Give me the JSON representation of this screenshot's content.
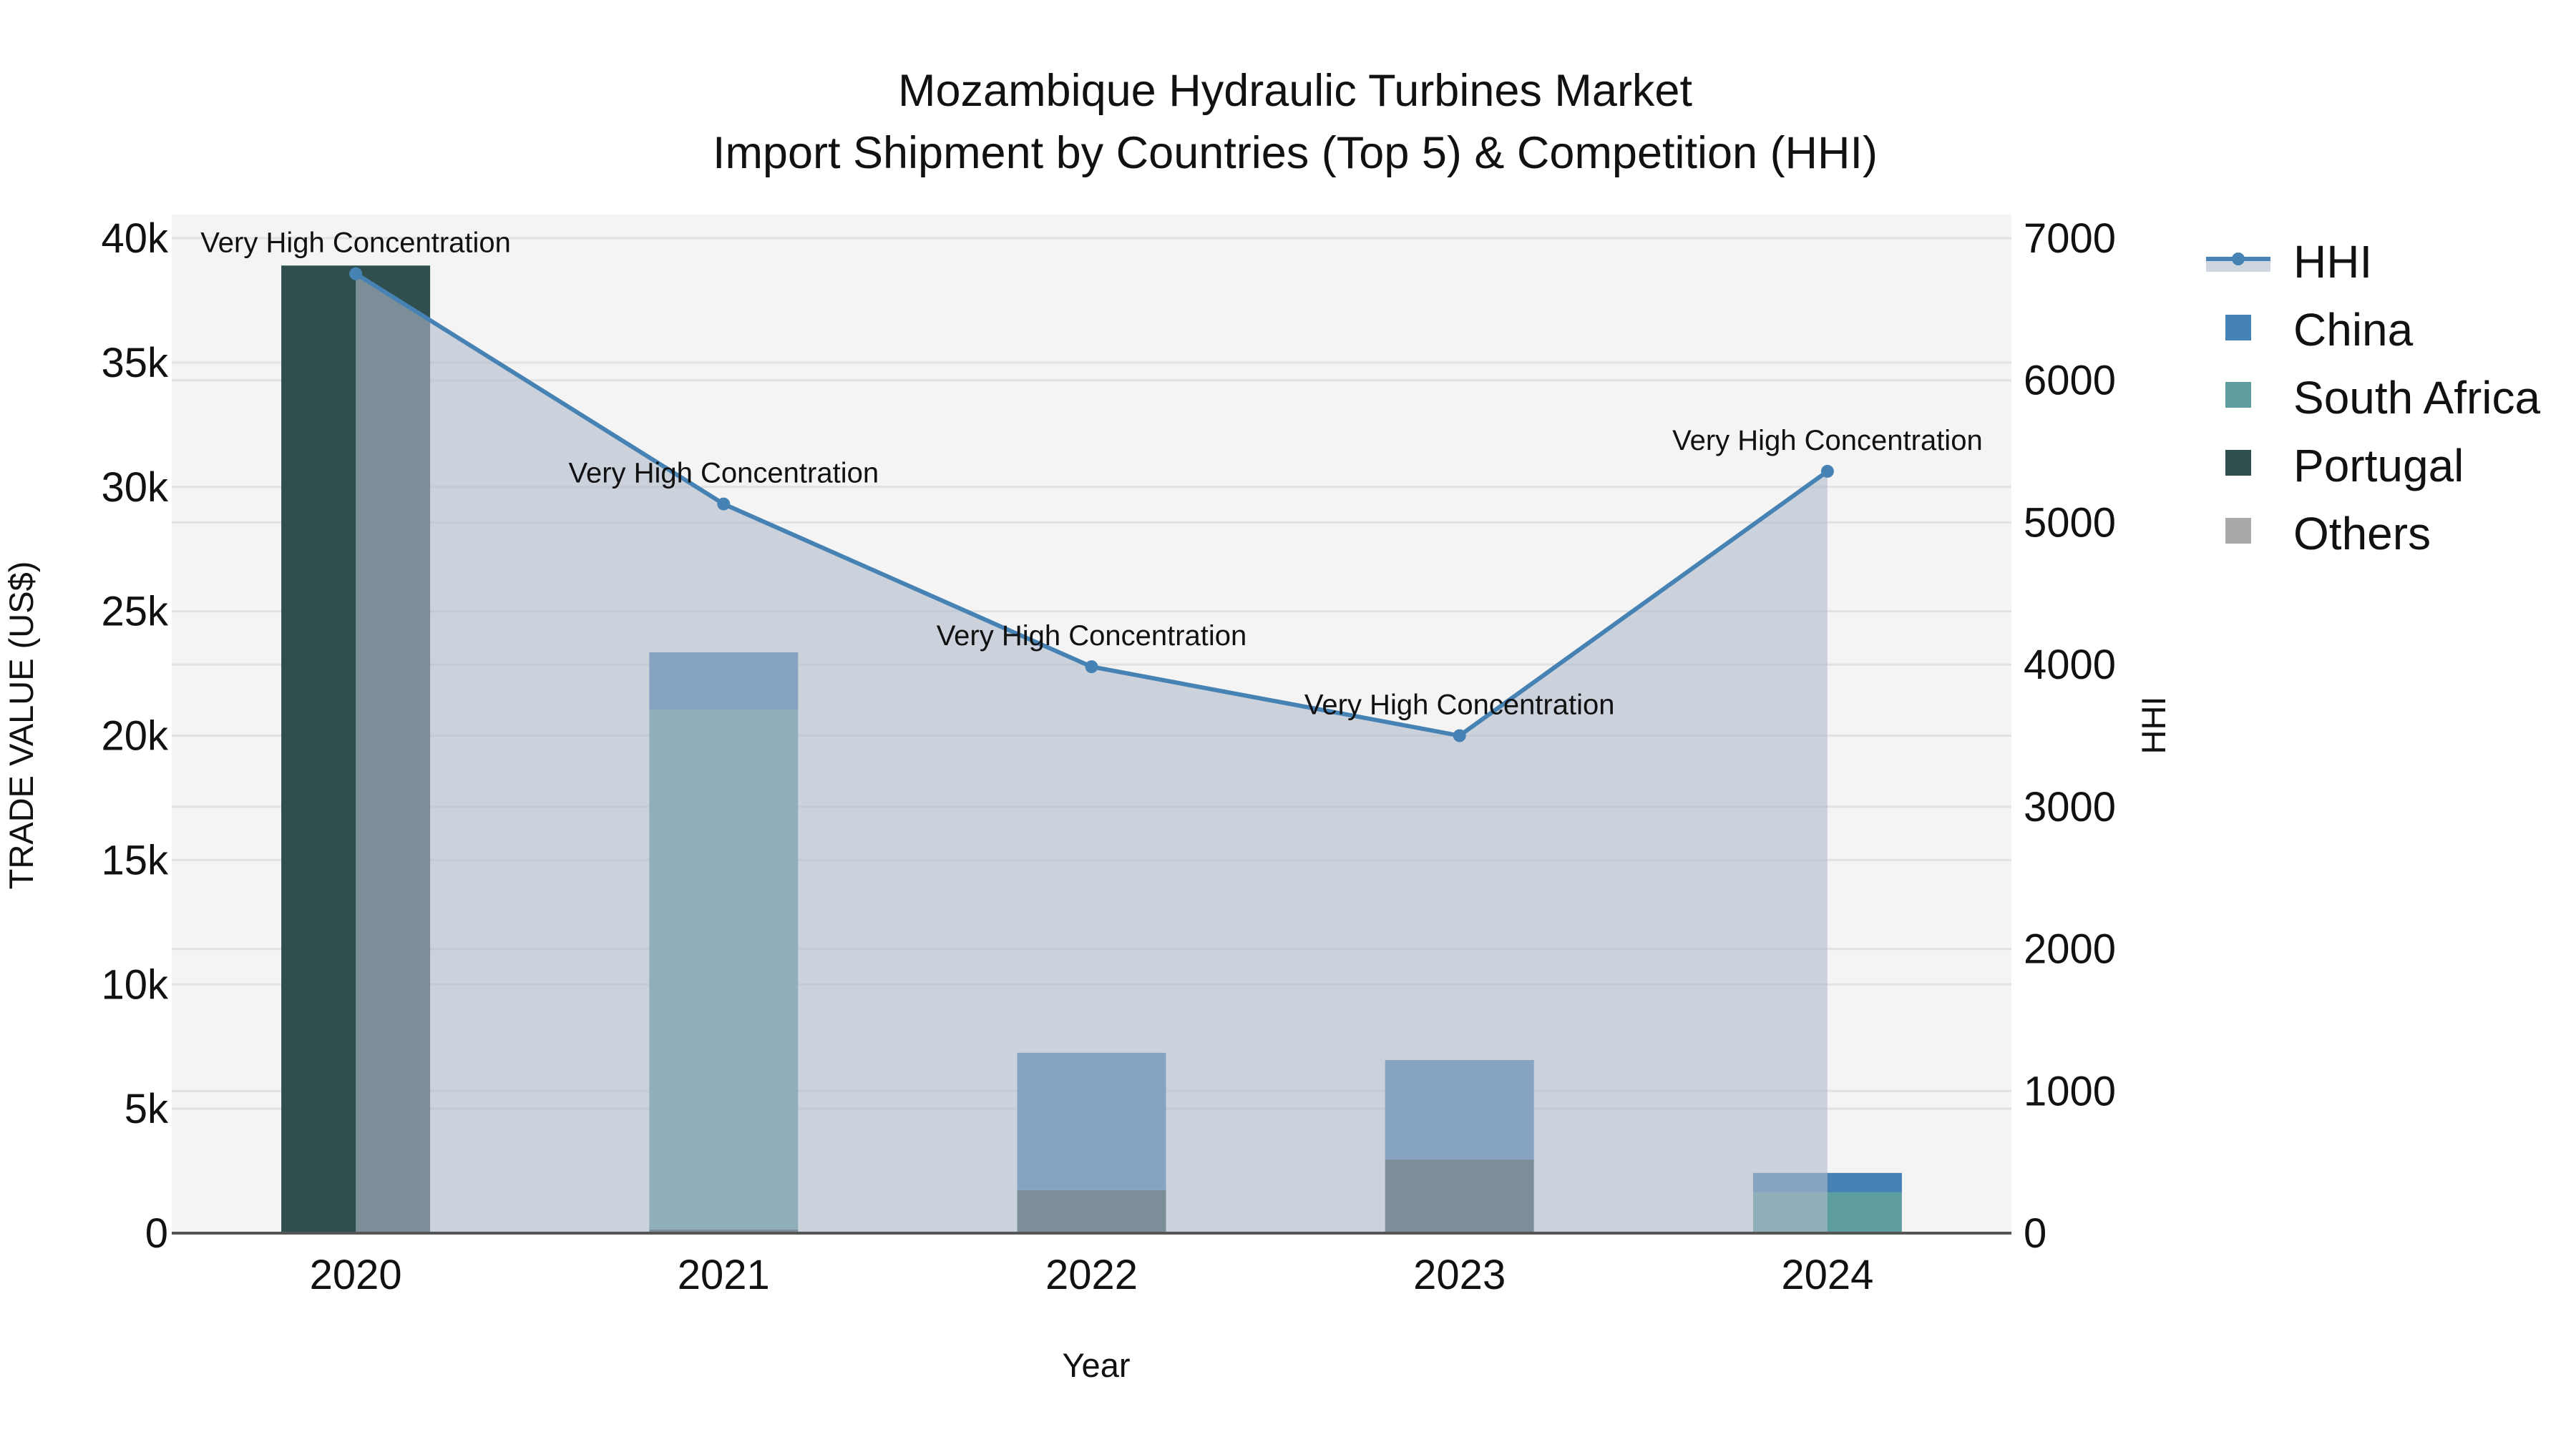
{
  "title": {
    "line1": "Mozambique Hydraulic Turbines Market",
    "line2": "Import Shipment by Countries (Top 5) & Competition (HHI)"
  },
  "axes": {
    "x_title": "Year",
    "y_left_title": "TRADE VALUE (US$)",
    "y_right_title": "HHI",
    "y_left_ticks": [
      "0",
      "5k",
      "10k",
      "15k",
      "20k",
      "25k",
      "30k",
      "35k",
      "40k"
    ],
    "y_right_ticks": [
      "0",
      "1000",
      "2000",
      "3000",
      "4000",
      "5000",
      "6000",
      "7000"
    ]
  },
  "legend": {
    "items": [
      {
        "label": "HHI",
        "type": "line",
        "color": "#4682B4"
      },
      {
        "label": "China",
        "type": "square",
        "color": "#4682B4"
      },
      {
        "label": "South Africa",
        "type": "square",
        "color": "#5F9EA0"
      },
      {
        "label": "Portugal",
        "type": "square",
        "color": "#2F4F4F"
      },
      {
        "label": "Others",
        "type": "square",
        "color": "#A9A9A9"
      }
    ]
  },
  "colors": {
    "plot_bg": "#F4F4F4",
    "grid": "#E2E2E2",
    "hhi_line": "#4682B4",
    "hhi_fill": "rgba(176,186,204,0.6)",
    "china": "#4682B4",
    "south_africa": "#5F9EA0",
    "portugal": "#2F4F4F",
    "others": "#A9A9A9",
    "zero_line": "#555555"
  },
  "chart_data": {
    "type": "bar",
    "subtype": "stacked bar + line (dual axis)",
    "title": "Mozambique Hydraulic Turbines Market — Import Shipment by Countries (Top 5) & Competition (HHI)",
    "xlabel": "Year",
    "ylabel": "TRADE VALUE (US$)",
    "y2label": "HHI",
    "ylim": [
      0,
      40000
    ],
    "y2lim": [
      0,
      7000
    ],
    "grid": true,
    "legend_position": "right",
    "categories": [
      "2020",
      "2021",
      "2022",
      "2023",
      "2024"
    ],
    "series": [
      {
        "name": "Portugal",
        "type": "bar",
        "axis": "left",
        "values": [
          38900,
          150,
          1730,
          2960,
          0
        ]
      },
      {
        "name": "South Africa",
        "type": "bar",
        "axis": "left",
        "values": [
          0,
          20900,
          0,
          0,
          1640
        ]
      },
      {
        "name": "China",
        "type": "bar",
        "axis": "left",
        "values": [
          0,
          2300,
          5520,
          4000,
          780
        ]
      },
      {
        "name": "Others",
        "type": "bar",
        "axis": "left",
        "values": [
          0,
          0,
          0,
          0,
          0
        ]
      },
      {
        "name": "HHI",
        "type": "line",
        "axis": "right",
        "fill": "tozeroy",
        "values": [
          6750,
          5130,
          3985,
          3500,
          5360
        ]
      }
    ],
    "annotations": [
      {
        "x": "2020",
        "text": "Very High Concentration"
      },
      {
        "x": "2021",
        "text": "Very High Concentration"
      },
      {
        "x": "2022",
        "text": "Very High Concentration"
      },
      {
        "x": "2023",
        "text": "Very High Concentration"
      },
      {
        "x": "2024",
        "text": "Very High Concentration"
      }
    ]
  }
}
